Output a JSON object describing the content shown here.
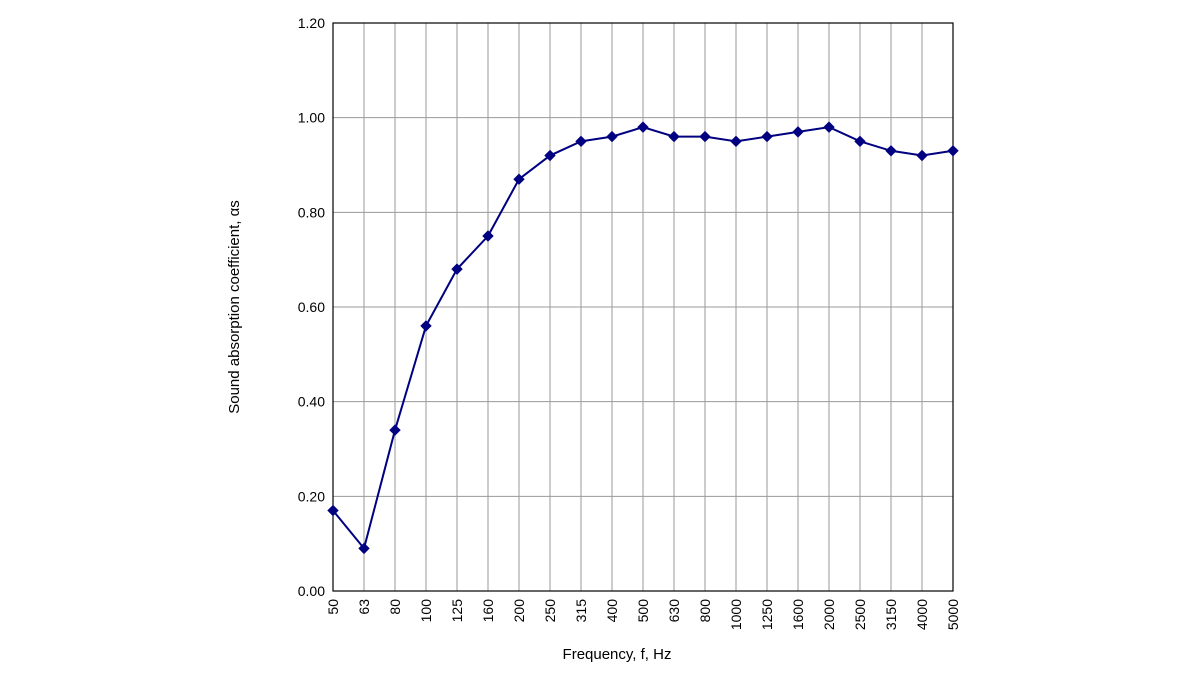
{
  "chart_data": {
    "type": "line",
    "xlabel": "Frequency, f, Hz",
    "ylabel": "Sound absorption coefficient, αs",
    "ylim": [
      0,
      1.2
    ],
    "yticks": [
      "0.00",
      "0.20",
      "0.40",
      "0.60",
      "0.80",
      "1.00",
      "1.20"
    ],
    "categories": [
      "50",
      "63",
      "80",
      "100",
      "125",
      "160",
      "200",
      "250",
      "315",
      "400",
      "500",
      "630",
      "800",
      "1000",
      "1250",
      "1600",
      "2000",
      "2500",
      "3150",
      "4000",
      "5000"
    ],
    "series": [
      {
        "values": [
          0.17,
          0.09,
          0.34,
          0.56,
          0.68,
          0.75,
          0.87,
          0.92,
          0.95,
          0.96,
          0.98,
          0.96,
          0.96,
          0.95,
          0.96,
          0.97,
          0.98,
          0.95,
          0.93,
          0.92,
          0.93
        ],
        "color": "#000080"
      }
    ],
    "grid": true,
    "legend": "none"
  }
}
